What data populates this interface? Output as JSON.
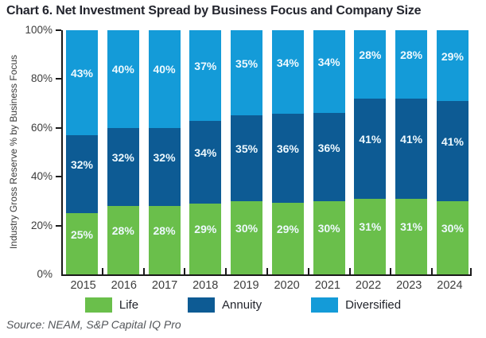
{
  "title": "Chart 6. Net Investment Spread by Business Focus and Company Size",
  "source": "Source: NEAM, S&P Capital IQ Pro",
  "chart_data": {
    "type": "bar",
    "stacked": true,
    "title": "Chart 6. Net Investment Spread by Business Focus and Company Size",
    "ylabel": "Industry Gross Reserve % by Business Focus",
    "xlabel": "",
    "ylim": [
      0,
      100
    ],
    "ytick_labels": [
      "0%",
      "20%",
      "40%",
      "60%",
      "80%",
      "100%"
    ],
    "ytick_values": [
      0,
      20,
      40,
      60,
      80,
      100
    ],
    "value_suffix": "%",
    "legend_position": "bottom",
    "grid": false,
    "categories": [
      "2015",
      "2016",
      "2017",
      "2018",
      "2019",
      "2020",
      "2021",
      "2022",
      "2023",
      "2024"
    ],
    "series": [
      {
        "name": "Life",
        "color": "#6abf4b",
        "values": [
          25,
          28,
          28,
          29,
          30,
          29,
          30,
          31,
          31,
          30
        ]
      },
      {
        "name": "Annuity",
        "color": "#0d5b94",
        "values": [
          32,
          32,
          32,
          34,
          35,
          36,
          36,
          41,
          41,
          41
        ]
      },
      {
        "name": "Diversified",
        "color": "#149bd8",
        "values": [
          43,
          40,
          40,
          37,
          35,
          34,
          34,
          28,
          28,
          29
        ]
      }
    ]
  },
  "colors": {
    "axis": "#1a1a1a",
    "title_text": "#23252e",
    "tick_text": "#3d3d3d",
    "bar_label_text": "#eef9fe",
    "source_text": "#53565a"
  }
}
